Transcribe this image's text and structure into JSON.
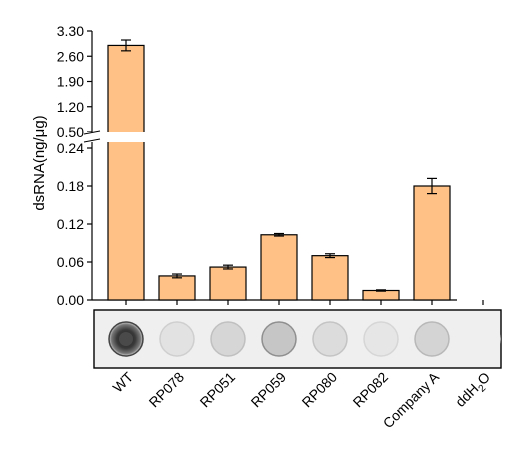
{
  "chart_data": {
    "type": "bar",
    "ylabel": "dsRNA(ng/μg)",
    "categories": [
      "WT",
      "RP078",
      "RP051",
      "RP059",
      "RP080",
      "RP082",
      "Company A",
      "ddH2O"
    ],
    "series": [
      {
        "values": [
          2.9,
          0.038,
          0.052,
          0.103,
          0.07,
          0.015,
          0.18,
          null
        ],
        "error": [
          0.15,
          0.003,
          0.003,
          0.002,
          0.003,
          0.001,
          0.012,
          null
        ]
      }
    ],
    "y_axis_segments": {
      "lower": {
        "ylim": [
          0,
          0.24
        ],
        "ticks": [
          "0.00",
          "0.06",
          "0.12",
          "0.18",
          "0.24"
        ]
      },
      "upper": {
        "ylim": [
          0.5,
          3.3
        ],
        "ticks": [
          "0.50",
          "1.20",
          "1.90",
          "2.60",
          "3.30"
        ]
      }
    },
    "bar_color": "#FFC185",
    "axis_break": true,
    "dot_blot_panel": true
  }
}
